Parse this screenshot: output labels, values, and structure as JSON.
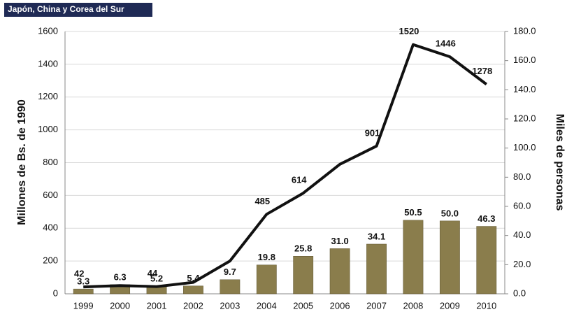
{
  "chart_data": {
    "type": "combo",
    "title": "Japón, China y Corea del Sur",
    "ylabel": "Millones de Bs. de 1990",
    "y2label": "Miles de personas",
    "categories": [
      "1999",
      "2000",
      "2001",
      "2002",
      "2003",
      "2004",
      "2005",
      "2006",
      "2007",
      "2008",
      "2009",
      "2010"
    ],
    "series": [
      {
        "type": "bar",
        "axis": "y2",
        "color": "#8a7d4c",
        "values": [
          3.3,
          6.3,
          5.2,
          5.4,
          9.7,
          19.8,
          25.8,
          31.0,
          34.1,
          50.5,
          50.0,
          46.3
        ],
        "value_labels": [
          "3.3",
          "6.3",
          "5.2",
          "5.4",
          "9.7",
          "19.8",
          "25.8",
          "31.0",
          "34.1",
          "50.5",
          "50.0",
          "46.3"
        ]
      },
      {
        "type": "line",
        "color": "#111111",
        "values": [
          42,
          50,
          44,
          70,
          200,
          485,
          614,
          790,
          901,
          1520,
          1446,
          1278
        ],
        "value_labels": [
          "42",
          null,
          "44",
          null,
          null,
          "485",
          "614",
          null,
          "901",
          "1520",
          "1446",
          "1278"
        ]
      }
    ],
    "ylim": [
      0,
      1600
    ],
    "yticks": [
      0,
      200,
      400,
      600,
      800,
      1000,
      1200,
      1400,
      1600
    ],
    "y2lim": [
      0,
      180
    ],
    "y2ticks": [
      {
        "value": 0,
        "label": "0.0"
      },
      {
        "value": 20,
        "label": "20.0"
      },
      {
        "value": 40,
        "label": "40.0"
      },
      {
        "value": 60,
        "label": "60.0"
      },
      {
        "value": 80,
        "label": "80.0"
      },
      {
        "value": 100,
        "label": "100.0"
      },
      {
        "value": 120,
        "label": "120.0"
      },
      {
        "value": 140,
        "label": "140.0"
      },
      {
        "value": 160,
        "label": "160.0"
      },
      {
        "value": 180,
        "label": "180.0"
      }
    ],
    "grid": true
  }
}
